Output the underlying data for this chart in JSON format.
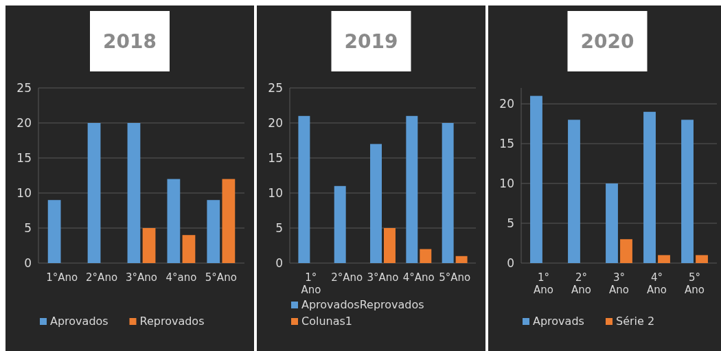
{
  "chart_data": [
    {
      "type": "bar",
      "title": "2018",
      "categories": [
        "1°Ano",
        "2°Ano",
        "3°Ano",
        "4°ano",
        "5°Ano"
      ],
      "series": [
        {
          "name": "Aprovados",
          "color": "#5b9bd5",
          "values": [
            9,
            20,
            20,
            12,
            9
          ]
        },
        {
          "name": "Reprovados",
          "color": "#ed7d31",
          "values": [
            null,
            null,
            5,
            4,
            12
          ]
        }
      ],
      "ylim": [
        0,
        25
      ],
      "yticks": [
        0,
        5,
        10,
        15,
        20,
        25
      ],
      "grid": "y",
      "legend": "bottom"
    },
    {
      "type": "bar",
      "title": "2019",
      "categories": [
        "1° Ano",
        "2°Ano",
        "3°Ano",
        "4°Ano",
        "5°Ano"
      ],
      "series": [
        {
          "name": "AprovadosReprovados",
          "color": "#5b9bd5",
          "values": [
            21,
            11,
            17,
            21,
            20
          ]
        },
        {
          "name": "Colunas1",
          "color": "#ed7d31",
          "values": [
            null,
            null,
            5,
            2,
            1
          ]
        }
      ],
      "ylim": [
        0,
        25
      ],
      "yticks": [
        0,
        5,
        10,
        15,
        20,
        25
      ],
      "grid": "y",
      "legend": "bottom"
    },
    {
      "type": "bar",
      "title": "2020",
      "categories": [
        "1° Ano",
        "2° Ano",
        "3° Ano",
        "4° Ano",
        "5° Ano"
      ],
      "series": [
        {
          "name": "Aprovads",
          "color": "#5b9bd5",
          "values": [
            21,
            18,
            10,
            19,
            18
          ]
        },
        {
          "name": "Série 2",
          "color": "#ed7d31",
          "values": [
            null,
            null,
            3,
            1,
            1
          ]
        }
      ],
      "ylim": [
        0,
        22
      ],
      "yticks": [
        0,
        5,
        10,
        15,
        20
      ],
      "grid": "y",
      "legend": "bottom"
    }
  ]
}
